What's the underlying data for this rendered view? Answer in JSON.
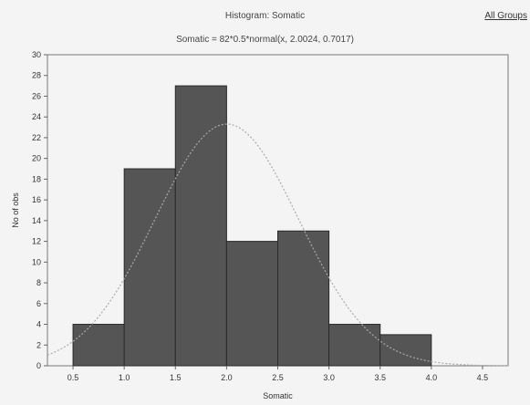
{
  "chart_data": {
    "type": "bar",
    "title": "Histogram: Somatic",
    "subtitle": "Somatic = 82*0.5*normal(x, 2.0024, 0.7017)",
    "xlabel": "Somatic",
    "ylabel": "No of obs",
    "group_label": "All Groups",
    "xlim": [
      0.25,
      4.75
    ],
    "ylim": [
      0,
      30
    ],
    "x_ticks": [
      "0.5",
      "1.0",
      "1.5",
      "2.0",
      "2.5",
      "3.0",
      "3.5",
      "4.0",
      "4.5"
    ],
    "y_ticks": [
      "0",
      "2",
      "4",
      "6",
      "8",
      "10",
      "12",
      "14",
      "16",
      "18",
      "20",
      "22",
      "24",
      "26",
      "28",
      "30"
    ],
    "bins": [
      {
        "from": 0.5,
        "to": 1.0,
        "value": 4
      },
      {
        "from": 1.0,
        "to": 1.5,
        "value": 19
      },
      {
        "from": 1.5,
        "to": 2.0,
        "value": 27
      },
      {
        "from": 2.0,
        "to": 2.5,
        "value": 12
      },
      {
        "from": 2.5,
        "to": 3.0,
        "value": 13
      },
      {
        "from": 3.0,
        "to": 3.5,
        "value": 4
      },
      {
        "from": 3.5,
        "to": 4.0,
        "value": 3
      },
      {
        "from": 4.0,
        "to": 4.5,
        "value": 0
      }
    ],
    "fit": {
      "type": "normal",
      "n": 82,
      "bin_width": 0.5,
      "mean": 2.0024,
      "sd": 0.7017
    },
    "grid": false,
    "colors": {
      "bar": "#555555",
      "bar_edge": "#2a2a2a",
      "fit_line": "#aaaaaa",
      "background": "#f4f4f4"
    }
  }
}
